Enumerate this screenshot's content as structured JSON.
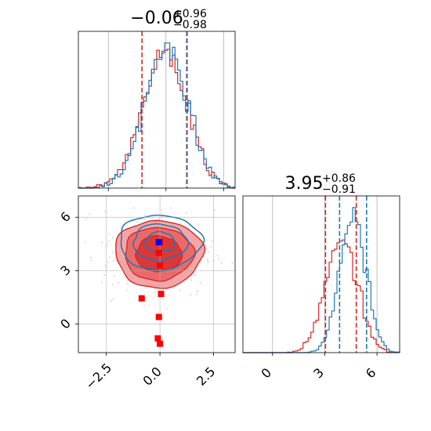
{
  "colors": {
    "red": "#d62728",
    "blue": "#1f77b4",
    "red_fill_light": "#f4a6a6",
    "red_fill_mid": "#ea6a6a",
    "red_fill_dark": "#d93838",
    "grid": "#b0b0b0",
    "marker_red": "#ff0000",
    "marker_blue": "#0000ff"
  },
  "chart_data": [
    {
      "panel": "top-left",
      "type": "histogram",
      "title_main": "−0.06",
      "title_sup": "+0.96",
      "title_sub": "−0.98",
      "xlim": [
        -3.8,
        3.0
      ],
      "grid": true,
      "x_ticks": [
        -2.5,
        0.0,
        2.5
      ],
      "series": [
        {
          "name": "",
          "color": "red",
          "mean": -0.06,
          "std": 0.97
        },
        {
          "name": "",
          "color": "blue",
          "mean": 0.0,
          "std": 0.93
        }
      ],
      "vlines": [
        {
          "x": -1.04,
          "color": "red"
        },
        {
          "x": 0.9,
          "color": "red"
        },
        {
          "x": 0.92,
          "color": "blue"
        }
      ]
    },
    {
      "panel": "bottom-right",
      "type": "histogram",
      "title_main": "3.95",
      "title_sup": "+0.86",
      "title_sub": "−0.91",
      "xlim": [
        -1.7,
        7.3
      ],
      "grid": true,
      "x_ticks": [
        0,
        3,
        6
      ],
      "x_tick_labels": [
        "0",
        "3",
        "6"
      ],
      "series": [
        {
          "name": "",
          "color": "red",
          "mean": 3.95,
          "std": 0.9
        },
        {
          "name": "",
          "color": "blue",
          "mean": 4.6,
          "std": 0.75
        }
      ],
      "vlines": [
        {
          "x": 3.04,
          "color": "red"
        },
        {
          "x": 4.81,
          "color": "red"
        },
        {
          "x": 3.85,
          "color": "blue"
        },
        {
          "x": 5.4,
          "color": "blue"
        }
      ]
    },
    {
      "panel": "bottom-left",
      "type": "contour",
      "xlim": [
        -3.8,
        3.5
      ],
      "ylim": [
        -1.6,
        7.2
      ],
      "grid": true,
      "x_ticks": [
        -2.5,
        0.0,
        2.5
      ],
      "x_tick_labels": [
        "−2.5",
        "0.0",
        "2.5"
      ],
      "y_ticks": [
        0,
        3,
        6
      ],
      "y_tick_labels": [
        "0",
        "3",
        "6"
      ],
      "red_center": [
        -0.06,
        3.95
      ],
      "red_sigma": [
        0.97,
        0.9
      ],
      "blue_center": [
        0.0,
        4.6
      ],
      "blue_sigma": [
        0.93,
        0.75
      ],
      "markers_red": [
        {
          "x": 0.0,
          "y": 4.6
        },
        {
          "x": -0.05,
          "y": 4.0
        },
        {
          "x": 0.0,
          "y": 3.3
        },
        {
          "x": 0.05,
          "y": 1.7
        },
        {
          "x": -0.85,
          "y": 1.45
        },
        {
          "x": -0.05,
          "y": 0.4
        },
        {
          "x": -0.1,
          "y": -0.8
        },
        {
          "x": 0.0,
          "y": -1.1
        }
      ],
      "marker_blue": {
        "x": -0.05,
        "y": 4.6
      }
    }
  ]
}
